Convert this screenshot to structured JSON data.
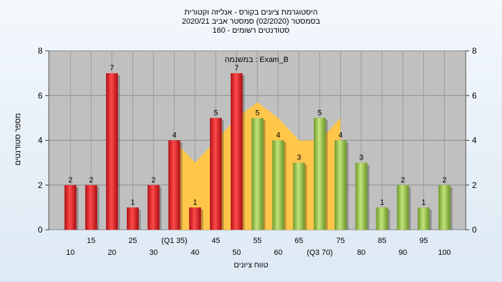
{
  "header": {
    "line1": "היסטוגרמת ציונים בקורס - אנליזה וקטורית",
    "line2": "בסמסטר  (02/2020)  סמסטר אביב 2020/21",
    "line3": "סטודנטים רשומים - 160"
  },
  "chart_data": {
    "type": "bar",
    "ylabel": "מספר סטודנטים",
    "xlabel": "טווח ציונים",
    "annotation": "במשנמה : Exam_B",
    "ylim": [
      0,
      8
    ],
    "yticks": [
      0,
      2,
      4,
      6,
      8
    ],
    "grid": true,
    "categories": [
      "10",
      "15",
      "20",
      "25",
      "30",
      "(Q1 35)",
      "40",
      "45",
      "50",
      "55",
      "60",
      "65",
      "(Q3 70)",
      "75",
      "80",
      "85",
      "90",
      "95",
      "100"
    ],
    "values": [
      2,
      2,
      7,
      1,
      2,
      4,
      1,
      5,
      7,
      5,
      4,
      3,
      5,
      4,
      3,
      1,
      2,
      1,
      2
    ],
    "bar_colors": [
      "red",
      "red",
      "red",
      "red",
      "red",
      "red",
      "red",
      "red",
      "red",
      "green",
      "green",
      "green",
      "green",
      "green",
      "green",
      "green",
      "green",
      "green",
      "green"
    ],
    "interquartile_area": {
      "from": "(Q1 35)",
      "to": "(Q3 70)",
      "values": [
        4,
        3,
        4,
        5,
        5.7,
        5,
        4,
        4,
        5
      ]
    }
  },
  "colors": {
    "plot_bg": "#c0c0c0",
    "red_bar": "#e0262a",
    "green_bar": "#9fcc4d",
    "area": "#ffc64a"
  }
}
